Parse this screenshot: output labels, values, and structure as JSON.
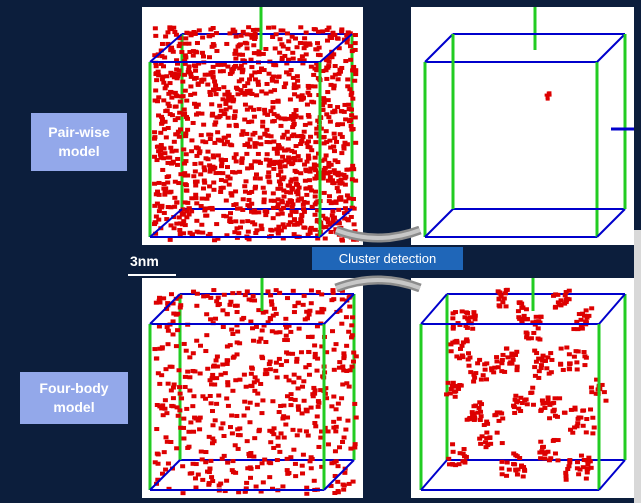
{
  "labels": {
    "pairwise": "Pair-wise\nmodel",
    "fourbody": "Four-body\nmodel"
  },
  "process_label": "Cluster detection",
  "scale_bar": "3nm",
  "colors": {
    "background": "#0c1e3c",
    "label_box": "#93a8ea",
    "atom": "#dd0000",
    "box_edge": "#0000cc",
    "vertical_edge": "#22cc22",
    "process_bar": "#1f66b8"
  },
  "panels": [
    {
      "name": "pairwise-all-atoms",
      "content": "dense"
    },
    {
      "name": "pairwise-clusters",
      "content": "sparse"
    },
    {
      "name": "fourbody-all-atoms",
      "content": "medium"
    },
    {
      "name": "fourbody-clusters",
      "content": "clusters"
    }
  ]
}
